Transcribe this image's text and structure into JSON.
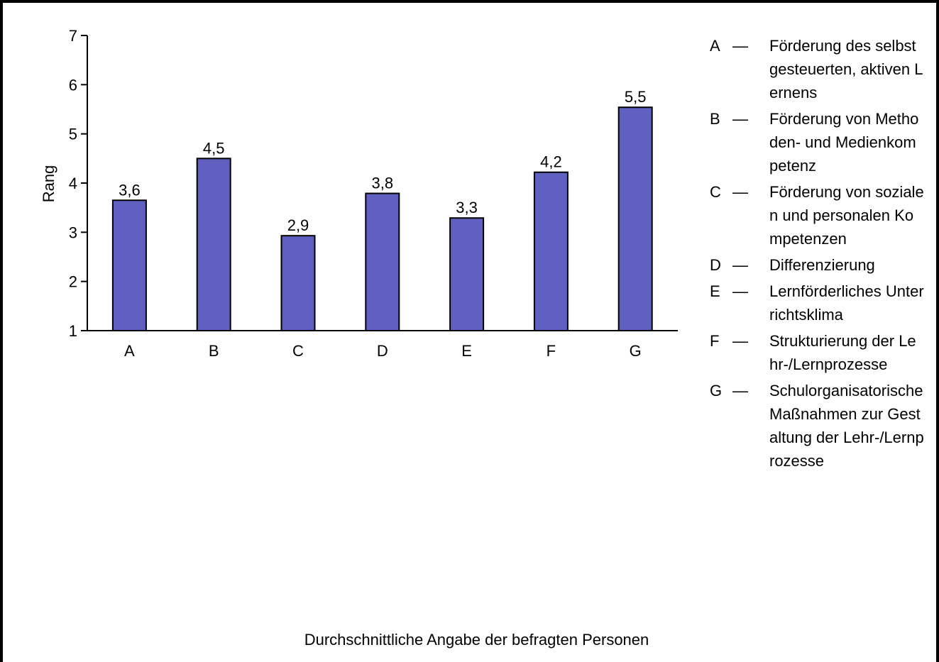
{
  "colors": {
    "bar": "#6060c0",
    "stroke": "#000000"
  },
  "chart_data": {
    "type": "bar",
    "categories": [
      "A",
      "B",
      "C",
      "D",
      "E",
      "F",
      "G"
    ],
    "values": [
      3.65,
      4.5,
      2.93,
      3.79,
      3.29,
      4.22,
      5.54
    ],
    "data_labels": [
      "3,6",
      "4,5",
      "2,9",
      "3,8",
      "3,3",
      "4,2",
      "5,5"
    ],
    "title": "",
    "xlabel": "Durchschnittliche Angabe der befragten Personen",
    "ylabel": "Rang",
    "ylim": [
      1,
      7
    ],
    "yticks": [
      "1",
      "2",
      "3",
      "4",
      "5",
      "6",
      "7"
    ],
    "grid": false,
    "legend_position": "right",
    "legend": [
      {
        "key": "A",
        "dash": "—",
        "text": "Förderung des selbstgesteuerten, aktiven Lernens"
      },
      {
        "key": "B",
        "dash": "—",
        "text": "Förderung von Methoden- und Medienkompetenz"
      },
      {
        "key": "C",
        "dash": "—",
        "text": "Förderung von sozialen und personalen Kompetenzen"
      },
      {
        "key": "D",
        "dash": "—",
        "text": "Differenzierung"
      },
      {
        "key": "E",
        "dash": "—",
        "text": "Lernförderliches Unterrichtsklima"
      },
      {
        "key": "F",
        "dash": "—",
        "text": "Strukturierung der Lehr-/Lernprozesse"
      },
      {
        "key": "G",
        "dash": "—",
        "text": "Schulorganisatorische Maßnahmen zur Gestaltung der Lehr-/Lernprozesse"
      }
    ]
  }
}
